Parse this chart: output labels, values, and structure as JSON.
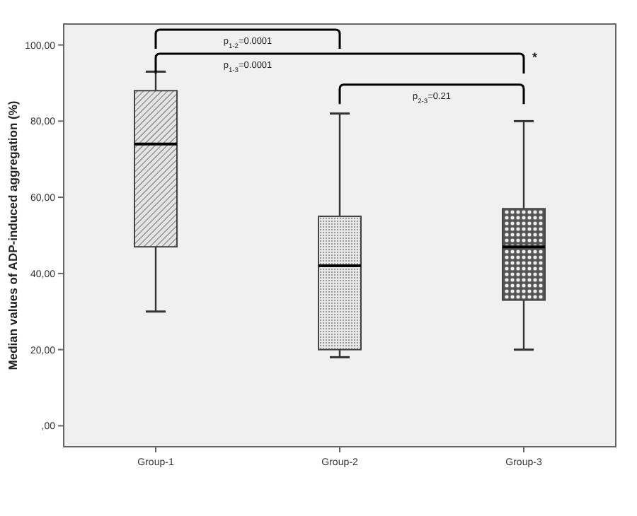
{
  "chart_data": {
    "type": "box",
    "ylabel": "Median values of ADP-induced aggregation (%)",
    "categories": [
      "Group-1",
      "Group-2",
      "Group-3"
    ],
    "boxes": [
      {
        "low": 30,
        "q1": 47,
        "median": 74,
        "q3": 88,
        "high": 93
      },
      {
        "low": 18,
        "q1": 20,
        "median": 42,
        "q3": 55,
        "high": 82
      },
      {
        "low": 20,
        "q1": 33,
        "median": 47,
        "q3": 57,
        "high": 80
      }
    ],
    "ylim": [
      -5.5,
      105.5
    ],
    "yticks": [
      {
        "value": 0,
        "label": ",00"
      },
      {
        "value": 20,
        "label": "20,00"
      },
      {
        "value": 40,
        "label": "40,00"
      },
      {
        "value": 60,
        "label": "60,00"
      },
      {
        "value": 80,
        "label": "80,00"
      },
      {
        "value": 100,
        "label": "100,00"
      }
    ],
    "annotations": [
      "p$_{1-2}$=0.0001",
      "p$_{1-3}$=0.0001",
      "p$_{2-3}$=0.21",
      "*"
    ],
    "grid": false
  }
}
